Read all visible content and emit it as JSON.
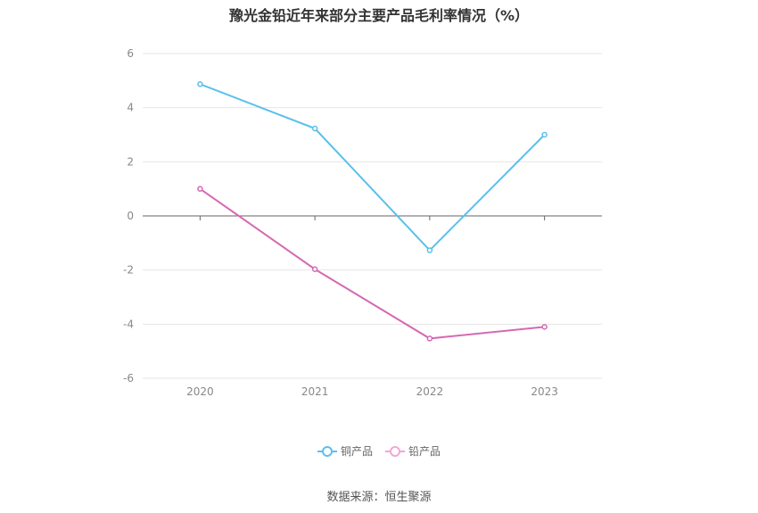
{
  "source_text": "数据来源：恒生聚源",
  "chart_data": {
    "type": "line",
    "title": "豫光金铅近年来部分主要产品毛利率情况（%）",
    "x": [
      "2020",
      "2021",
      "2022",
      "2023"
    ],
    "series": [
      {
        "name": "铜产品",
        "color": "#5bc0eb",
        "values": [
          4.87,
          3.23,
          -1.27,
          3.0
        ]
      },
      {
        "name": "铅产品",
        "color": "#d46ab3",
        "values": [
          1.0,
          -1.97,
          -4.53,
          -4.1
        ]
      }
    ],
    "ylim": [
      -6,
      6
    ],
    "yticks": [
      "6",
      "4",
      "2",
      "0",
      "-2",
      "-4",
      "-6"
    ],
    "grid": true,
    "legend": "bottom"
  }
}
